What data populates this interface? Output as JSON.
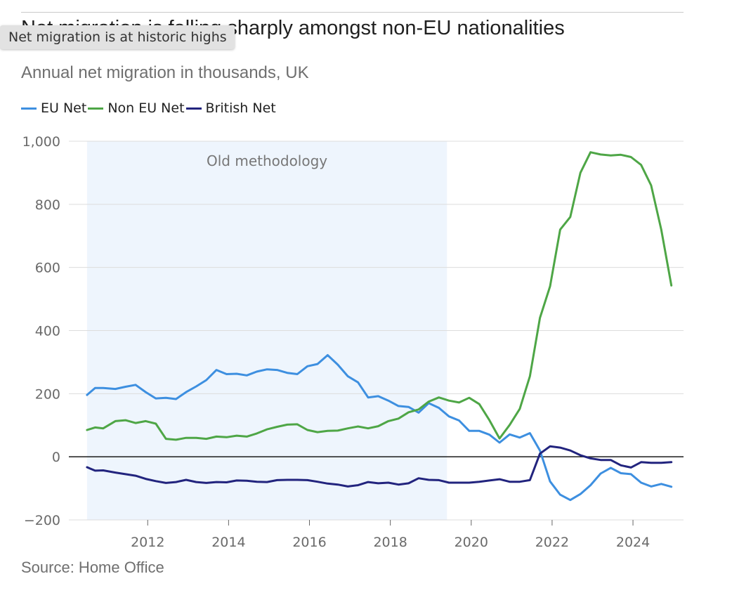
{
  "title": "Net migration is falling sharply amongst non-EU nationalities",
  "tooltip": "Net migration is at historic highs",
  "subtitle": "Annual net migration in thousands, UK",
  "source": "Source: Home Office",
  "colors": {
    "eu": "#3d8fe0",
    "non_eu": "#4ea646",
    "british": "#22247e",
    "band": "#eef5fd"
  },
  "chart_data": {
    "type": "line",
    "title": "Net migration is falling sharply amongst non-EU nationalities",
    "subtitle": "Annual net migration in thousands, UK",
    "xlabel": "",
    "ylabel": "",
    "xlim": [
      2010.05,
      2025.25
    ],
    "ylim": [
      -200,
      1000
    ],
    "x_ticks": [
      2012,
      2014,
      2016,
      2018,
      2020,
      2022,
      2024
    ],
    "x_tick_labels": [
      "2012",
      "2014",
      "2016",
      "2018",
      "2020",
      "2022",
      "2024"
    ],
    "y_ticks": [
      -200,
      0,
      200,
      400,
      600,
      800,
      1000
    ],
    "y_tick_labels": [
      "−200",
      "0",
      "200",
      "400",
      "600",
      "800",
      "1,000"
    ],
    "grid": true,
    "legend_position": "top-left",
    "annotation": {
      "label": "Old methodology",
      "x_start": 2010.5,
      "x_end": 2019.4
    },
    "series": [
      {
        "name": "EU Net",
        "color_key": "eu",
        "x": [
          2010.5,
          2010.7,
          2010.9,
          2011.2,
          2011.45,
          2011.7,
          2011.95,
          2012.2,
          2012.45,
          2012.7,
          2012.95,
          2013.2,
          2013.45,
          2013.7,
          2013.95,
          2014.2,
          2014.45,
          2014.7,
          2014.95,
          2015.2,
          2015.45,
          2015.7,
          2015.95,
          2016.2,
          2016.45,
          2016.7,
          2016.95,
          2017.2,
          2017.45,
          2017.7,
          2017.95,
          2018.2,
          2018.45,
          2018.7,
          2018.95,
          2019.2,
          2019.45,
          2019.7,
          2019.95,
          2020.2,
          2020.45,
          2020.7,
          2020.95,
          2021.2,
          2021.45,
          2021.7,
          2021.95,
          2022.2,
          2022.45,
          2022.7,
          2022.95,
          2023.2,
          2023.45,
          2023.7,
          2023.95,
          2024.2,
          2024.45,
          2024.7,
          2024.95
        ],
        "values": [
          196,
          218,
          218,
          215,
          222,
          228,
          205,
          185,
          187,
          183,
          205,
          223,
          243,
          275,
          262,
          263,
          258,
          270,
          277,
          275,
          266,
          262,
          287,
          294,
          322,
          292,
          255,
          236,
          188,
          192,
          178,
          161,
          158,
          140,
          170,
          155,
          128,
          115,
          82,
          82,
          70,
          45,
          71,
          61,
          75,
          20,
          -78,
          -120,
          -137,
          -118,
          -90,
          -53,
          -35,
          -52,
          -55,
          -82,
          -94,
          -86,
          -95
        ]
      },
      {
        "name": "Non EU Net",
        "color_key": "non_eu",
        "x": [
          2010.5,
          2010.7,
          2010.9,
          2011.2,
          2011.45,
          2011.7,
          2011.95,
          2012.2,
          2012.45,
          2012.7,
          2012.95,
          2013.2,
          2013.45,
          2013.7,
          2013.95,
          2014.2,
          2014.45,
          2014.7,
          2014.95,
          2015.2,
          2015.45,
          2015.7,
          2015.95,
          2016.2,
          2016.45,
          2016.7,
          2016.95,
          2017.2,
          2017.45,
          2017.7,
          2017.95,
          2018.2,
          2018.45,
          2018.7,
          2018.95,
          2019.2,
          2019.45,
          2019.7,
          2019.95,
          2020.2,
          2020.45,
          2020.7,
          2020.95,
          2021.2,
          2021.45,
          2021.7,
          2021.95,
          2022.2,
          2022.45,
          2022.7,
          2022.95,
          2023.2,
          2023.45,
          2023.7,
          2023.95,
          2024.2,
          2024.45,
          2024.7,
          2024.95
        ],
        "values": [
          85,
          93,
          90,
          113,
          116,
          107,
          113,
          105,
          57,
          54,
          60,
          60,
          57,
          64,
          62,
          67,
          64,
          74,
          87,
          95,
          102,
          103,
          85,
          78,
          82,
          83,
          90,
          96,
          90,
          97,
          113,
          121,
          141,
          150,
          175,
          188,
          178,
          172,
          187,
          167,
          116,
          58,
          101,
          152,
          255,
          440,
          540,
          720,
          760,
          900,
          965,
          958,
          955,
          957,
          950,
          925,
          860,
          720,
          543
        ]
      },
      {
        "name": "British Net",
        "color_key": "british",
        "x": [
          2010.5,
          2010.7,
          2010.9,
          2011.2,
          2011.45,
          2011.7,
          2011.95,
          2012.2,
          2012.45,
          2012.7,
          2012.95,
          2013.2,
          2013.45,
          2013.7,
          2013.95,
          2014.2,
          2014.45,
          2014.7,
          2014.95,
          2015.2,
          2015.45,
          2015.7,
          2015.95,
          2016.2,
          2016.45,
          2016.7,
          2016.95,
          2017.2,
          2017.45,
          2017.7,
          2017.95,
          2018.2,
          2018.45,
          2018.7,
          2018.95,
          2019.2,
          2019.45,
          2019.7,
          2019.95,
          2020.2,
          2020.45,
          2020.7,
          2020.95,
          2021.2,
          2021.45,
          2021.7,
          2021.95,
          2022.2,
          2022.45,
          2022.7,
          2022.95,
          2023.2,
          2023.45,
          2023.7,
          2023.95,
          2024.2,
          2024.45,
          2024.7,
          2024.95
        ],
        "values": [
          -33,
          -44,
          -43,
          -50,
          -55,
          -60,
          -70,
          -77,
          -83,
          -80,
          -73,
          -80,
          -83,
          -80,
          -81,
          -75,
          -76,
          -79,
          -80,
          -74,
          -73,
          -73,
          -74,
          -79,
          -85,
          -88,
          -94,
          -90,
          -80,
          -84,
          -82,
          -88,
          -84,
          -68,
          -73,
          -74,
          -82,
          -82,
          -82,
          -79,
          -75,
          -71,
          -79,
          -79,
          -74,
          10,
          33,
          29,
          20,
          5,
          -5,
          -10,
          -10,
          -27,
          -34,
          -17,
          -19,
          -19,
          -17
        ]
      }
    ]
  }
}
